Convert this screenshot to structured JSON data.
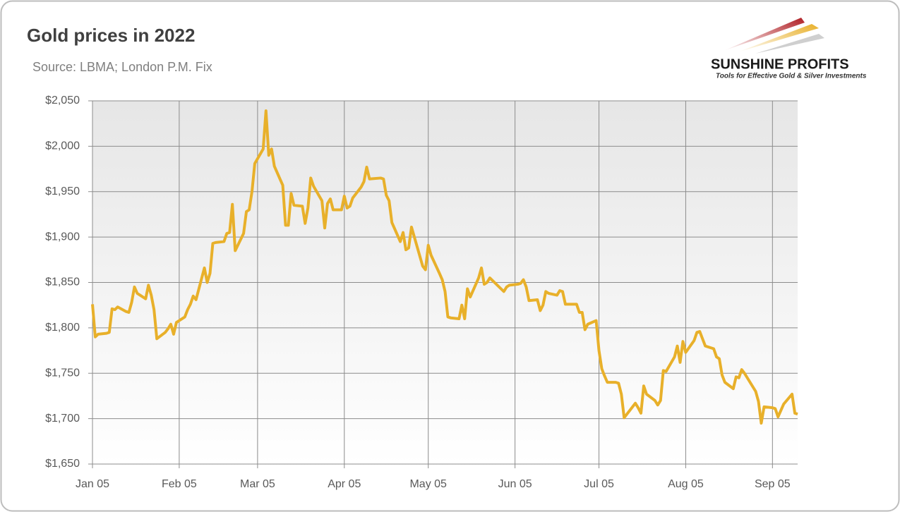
{
  "chart_data": {
    "type": "line",
    "title": "Gold prices in 2022",
    "subtitle": "Source: LBMA; London P.M. Fix",
    "x": [
      "Jan 05",
      "Jan 06",
      "Jan 07",
      "Jan 10",
      "Jan 11",
      "Jan 12",
      "Jan 13",
      "Jan 14",
      "Jan 17",
      "Jan 18",
      "Jan 19",
      "Jan 20",
      "Jan 21",
      "Jan 24",
      "Jan 25",
      "Jan 26",
      "Jan 27",
      "Jan 28",
      "Jan 31",
      "Feb 01",
      "Feb 02",
      "Feb 03",
      "Feb 04",
      "Feb 07",
      "Feb 08",
      "Feb 09",
      "Feb 10",
      "Feb 11",
      "Feb 14",
      "Feb 15",
      "Feb 16",
      "Feb 17",
      "Feb 18",
      "Feb 21",
      "Feb 22",
      "Feb 23",
      "Feb 24",
      "Feb 25",
      "Feb 28",
      "Mar 01",
      "Mar 02",
      "Mar 03",
      "Mar 04",
      "Mar 07",
      "Mar 08",
      "Mar 09",
      "Mar 10",
      "Mar 11",
      "Mar 14",
      "Mar 15",
      "Mar 16",
      "Mar 17",
      "Mar 18",
      "Mar 21",
      "Mar 22",
      "Mar 23",
      "Mar 24",
      "Mar 25",
      "Mar 28",
      "Mar 29",
      "Mar 30",
      "Mar 31",
      "Apr 01",
      "Apr 04",
      "Apr 05",
      "Apr 06",
      "Apr 07",
      "Apr 08",
      "Apr 11",
      "Apr 12",
      "Apr 13",
      "Apr 14",
      "Apr 18",
      "Apr 19",
      "Apr 20",
      "Apr 21",
      "Apr 22",
      "Apr 25",
      "Apr 26",
      "Apr 27",
      "Apr 28",
      "Apr 29",
      "May 03",
      "May 04",
      "May 05",
      "May 06",
      "May 09",
      "May 10",
      "May 11",
      "May 12",
      "May 13",
      "May 16",
      "May 17",
      "May 18",
      "May 19",
      "May 20",
      "May 23",
      "May 24",
      "May 25",
      "May 26",
      "May 27",
      "Jun 01",
      "Jun 02",
      "Jun 03",
      "Jun 06",
      "Jun 07",
      "Jun 08",
      "Jun 09",
      "Jun 10",
      "Jun 13",
      "Jun 14",
      "Jun 15",
      "Jun 16",
      "Jun 17",
      "Jun 20",
      "Jun 21",
      "Jun 22",
      "Jun 23",
      "Jun 24",
      "Jun 27",
      "Jun 28",
      "Jun 29",
      "Jun 30",
      "Jul 01",
      "Jul 04",
      "Jul 05",
      "Jul 06",
      "Jul 07",
      "Jul 08",
      "Jul 11",
      "Jul 12",
      "Jul 13",
      "Jul 14",
      "Jul 15",
      "Jul 18",
      "Jul 19",
      "Jul 20",
      "Jul 21",
      "Jul 22",
      "Jul 25",
      "Jul 26",
      "Jul 27",
      "Jul 28",
      "Jul 29",
      "Aug 01",
      "Aug 02",
      "Aug 03",
      "Aug 04",
      "Aug 05",
      "Aug 08",
      "Aug 09",
      "Aug 10",
      "Aug 11",
      "Aug 12",
      "Aug 15",
      "Aug 16",
      "Aug 17",
      "Aug 18",
      "Aug 19",
      "Aug 22",
      "Aug 23",
      "Aug 24",
      "Aug 25",
      "Aug 26",
      "Aug 30",
      "Aug 31",
      "Sep 01",
      "Sep 02",
      "Sep 05",
      "Sep 06",
      "Sep 07",
      "Sep 08",
      "Sep 09",
      "Sep 12",
      "Sep 13",
      "Sep 14"
    ],
    "series": [
      {
        "name": "Gold price",
        "color": "#e8b02a",
        "values": [
          1826,
          1790,
          1793,
          1794,
          1795,
          1821,
          1820,
          1823,
          1818,
          1817,
          1828,
          1845,
          1838,
          1832,
          1847,
          1836,
          1820,
          1788,
          1795,
          1799,
          1804,
          1793,
          1806,
          1812,
          1820,
          1826,
          1835,
          1831,
          1866,
          1850,
          1860,
          1893,
          1894,
          1895,
          1904,
          1905,
          1936,
          1885,
          1904,
          1928,
          1930,
          1950,
          1981,
          1997,
          2039,
          1990,
          1997,
          1978,
          1957,
          1913,
          1913,
          1948,
          1935,
          1934,
          1915,
          1932,
          1965,
          1956,
          1940,
          1910,
          1937,
          1942,
          1930,
          1930,
          1945,
          1932,
          1934,
          1943,
          1955,
          1961,
          1977,
          1964,
          1965,
          1964,
          1946,
          1940,
          1916,
          1895,
          1905,
          1886,
          1888,
          1911,
          1868,
          1864,
          1891,
          1880,
          1860,
          1853,
          1840,
          1812,
          1811,
          1810,
          1825,
          1810,
          1843,
          1834,
          1855,
          1866,
          1848,
          1850,
          1855,
          1840,
          1845,
          1847,
          1848,
          1849,
          1853,
          1845,
          1830,
          1831,
          1819,
          1825,
          1840,
          1838,
          1836,
          1841,
          1840,
          1826,
          1826,
          1826,
          1817,
          1817,
          1798,
          1804,
          1808,
          1775,
          1755,
          1747,
          1740,
          1740,
          1739,
          1727,
          1701,
          1705,
          1717,
          1712,
          1706,
          1736,
          1727,
          1720,
          1715,
          1720,
          1753,
          1752,
          1768,
          1780,
          1762,
          1785,
          1773,
          1786,
          1795,
          1796,
          1788,
          1780,
          1777,
          1768,
          1766,
          1748,
          1740,
          1733,
          1746,
          1745,
          1754,
          1750,
          1730,
          1719,
          1695,
          1713,
          1712,
          1711,
          1702,
          1709,
          1716,
          1727,
          1706,
          1705
        ]
      }
    ],
    "xlim": [
      "Jan 05",
      "Sep 14"
    ],
    "xticks": [
      "Jan 05",
      "Feb 05",
      "Mar 05",
      "Apr 05",
      "May 05",
      "Jun 05",
      "Jul 05",
      "Aug 05",
      "Sep 05"
    ],
    "ylim": [
      1650,
      2050
    ],
    "yticks": [
      {
        "value": 1650,
        "label": "$1,650"
      },
      {
        "value": 1700,
        "label": "$1,700"
      },
      {
        "value": 1750,
        "label": "$1,750"
      },
      {
        "value": 1800,
        "label": "$1,800"
      },
      {
        "value": 1850,
        "label": "$1,850"
      },
      {
        "value": 1900,
        "label": "$1,900"
      },
      {
        "value": 1950,
        "label": "$1,950"
      },
      {
        "value": 2000,
        "label": "$2,000"
      },
      {
        "value": 2050,
        "label": "$2,050"
      }
    ],
    "grid": true
  },
  "logo": {
    "name": "SUNSHINE PROFITS",
    "tagline": "Tools for Effective Gold & Silver Investments"
  }
}
